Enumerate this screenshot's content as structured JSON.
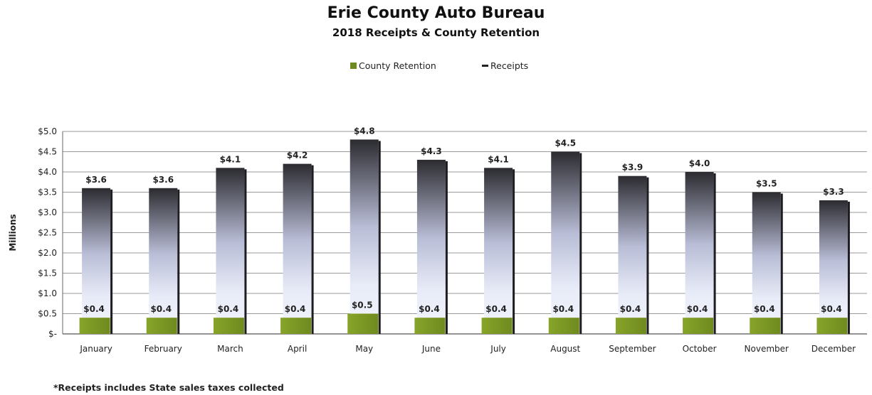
{
  "title": "Erie County Auto Bureau",
  "subtitle": "2018 Receipts & County Retention",
  "legend": {
    "retention": "County Retention",
    "receipts": "Receipts"
  },
  "footnote": "*Receipts includes State sales taxes collected",
  "colors": {
    "retention": "#6f8a1e",
    "receipts_top": "#2b2b30",
    "receipts_mid": "#b9bdd6",
    "receipts_low": "#e8ecf8"
  },
  "chart_data": {
    "type": "bar",
    "title": "Erie County Auto Bureau",
    "subtitle": "2018 Receipts & County Retention",
    "xlabel": "",
    "ylabel": "Millions",
    "ylim": [
      0,
      5.0
    ],
    "grid": true,
    "legend_position": "top",
    "y_tick_labels": [
      "$-",
      "$0.5",
      "$1.0",
      "$1.5",
      "$2.0",
      "$2.5",
      "$3.0",
      "$3.5",
      "$4.0",
      "$4.5",
      "$5.0"
    ],
    "categories": [
      "January",
      "February",
      "March",
      "April",
      "May",
      "June",
      "July",
      "August",
      "September",
      "October",
      "November",
      "December"
    ],
    "series": [
      {
        "name": "County Retention",
        "values": [
          0.4,
          0.4,
          0.4,
          0.4,
          0.5,
          0.4,
          0.4,
          0.4,
          0.4,
          0.4,
          0.4,
          0.4
        ],
        "labels": [
          "$0.4",
          "$0.4",
          "$0.4",
          "$0.4",
          "$0.5",
          "$0.4",
          "$0.4",
          "$0.4",
          "$0.4",
          "$0.4",
          "$0.4",
          "$0.4"
        ]
      },
      {
        "name": "Receipts",
        "values": [
          3.6,
          3.6,
          4.1,
          4.2,
          4.8,
          4.3,
          4.1,
          4.5,
          3.9,
          4.0,
          3.5,
          3.3
        ],
        "labels": [
          "$3.6",
          "$3.6",
          "$4.1",
          "$4.2",
          "$4.8",
          "$4.3",
          "$4.1",
          "$4.5",
          "$3.9",
          "$4.0",
          "$3.5",
          "$3.3"
        ]
      }
    ]
  }
}
